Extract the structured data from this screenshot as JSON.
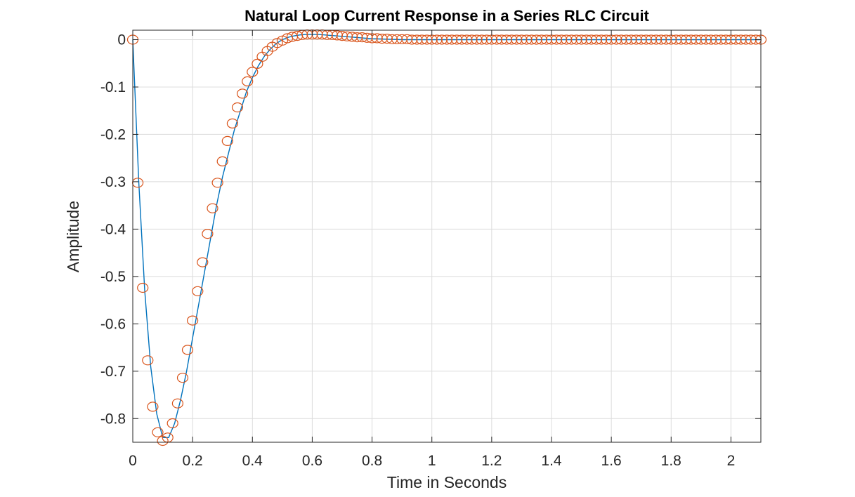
{
  "chart_data": {
    "type": "line",
    "title": "Natural Loop Current Response in a Series RLC Circuit",
    "xlabel": "Time in Seconds",
    "ylabel": "Amplitude",
    "xlim": [
      0,
      2.1
    ],
    "ylim": [
      -0.85,
      0.02
    ],
    "x_ticks": [
      0,
      0.2,
      0.4,
      0.6,
      0.8,
      1,
      1.2,
      1.4,
      1.6,
      1.8,
      2
    ],
    "x_tick_labels": [
      "0",
      "0.2",
      "0.4",
      "0.6",
      "0.8",
      "1",
      "1.2",
      "1.4",
      "1.6",
      "1.8",
      "2"
    ],
    "y_ticks": [
      0,
      -0.1,
      -0.2,
      -0.3,
      -0.4,
      -0.5,
      -0.6,
      -0.7,
      -0.8
    ],
    "y_tick_labels": [
      "0",
      "-0.1",
      "-0.2",
      "-0.3",
      "-0.4",
      "-0.5",
      "-0.6",
      "-0.7",
      "-0.8"
    ],
    "grid": true,
    "series": [
      {
        "style": "line",
        "color": "#0072BD",
        "x": [
          0,
          0.02,
          0.04,
          0.06,
          0.08,
          0.1,
          0.12,
          0.14,
          0.16,
          0.18,
          0.2,
          0.22,
          0.24,
          0.26,
          0.28,
          0.3,
          0.32,
          0.34,
          0.36,
          0.38,
          0.4,
          0.42,
          0.44,
          0.46,
          0.48,
          0.5,
          0.52,
          0.54,
          0.56,
          0.58,
          0.6,
          0.62,
          0.64,
          0.66,
          0.68,
          0.7,
          0.72,
          0.74,
          0.76,
          0.78,
          0.8,
          0.85,
          0.9,
          1.0,
          1.2,
          1.5,
          1.8,
          2.1
        ],
        "y": [
          0,
          -0.3,
          -0.53,
          -0.69,
          -0.79,
          -0.84,
          -0.84,
          -0.81,
          -0.76,
          -0.7,
          -0.63,
          -0.56,
          -0.49,
          -0.42,
          -0.35,
          -0.29,
          -0.24,
          -0.19,
          -0.15,
          -0.11,
          -0.08,
          -0.055,
          -0.035,
          -0.02,
          -0.008,
          0.0,
          0.005,
          0.008,
          0.01,
          0.011,
          0.011,
          0.011,
          0.01,
          0.009,
          0.008,
          0.007,
          0.006,
          0.005,
          0.004,
          0.003,
          0.002,
          0.001,
          0.0,
          0.0,
          0.0,
          0.0,
          0.0,
          0.0
        ]
      },
      {
        "style": "markers",
        "marker": "circle",
        "color": "#D95319",
        "x": [
          0,
          0.0167,
          0.0333,
          0.05,
          0.0667,
          0.0833,
          0.1,
          0.1167,
          0.1333,
          0.15,
          0.1667,
          0.1833,
          0.2,
          0.2167,
          0.2333,
          0.25,
          0.2667,
          0.2833,
          0.3,
          0.3167,
          0.3333,
          0.35,
          0.3667,
          0.3833,
          0.4,
          0.4167,
          0.4333,
          0.45,
          0.4667,
          0.4833,
          0.5,
          0.5167,
          0.5333,
          0.55,
          0.5667,
          0.5833,
          0.6,
          0.6167,
          0.6333,
          0.65,
          0.6667,
          0.6833,
          0.7,
          0.7167,
          0.7333,
          0.75,
          0.7667,
          0.7833,
          0.8,
          0.8167,
          0.8333,
          0.85,
          0.8667,
          0.8833,
          0.9,
          0.9167,
          0.9333,
          0.95,
          0.9667,
          0.9833,
          1.0,
          1.0167,
          1.0333,
          1.05,
          1.0667,
          1.0833,
          1.1,
          1.1167,
          1.1333,
          1.15,
          1.1667,
          1.1833,
          1.2,
          1.2167,
          1.2333,
          1.25,
          1.2667,
          1.2833,
          1.3,
          1.3167,
          1.3333,
          1.35,
          1.3667,
          1.3833,
          1.4,
          1.4167,
          1.4333,
          1.45,
          1.4667,
          1.4833,
          1.5,
          1.5167,
          1.5333,
          1.55,
          1.5667,
          1.5833,
          1.6,
          1.6167,
          1.6333,
          1.65,
          1.6667,
          1.6833,
          1.7,
          1.7167,
          1.7333,
          1.75,
          1.7667,
          1.7833,
          1.8,
          1.8167,
          1.8333,
          1.85,
          1.8667,
          1.8833,
          1.9,
          1.9167,
          1.9333,
          1.95,
          1.9667,
          1.9833,
          2.0,
          2.0167,
          2.0333,
          2.05,
          2.0667,
          2.0833,
          2.1
        ],
        "y": [
          0,
          -0.302,
          -0.524,
          -0.677,
          -0.775,
          -0.829,
          -0.847,
          -0.84,
          -0.81,
          -0.768,
          -0.714,
          -0.655,
          -0.593,
          -0.531,
          -0.47,
          -0.41,
          -0.356,
          -0.302,
          -0.257,
          -0.214,
          -0.177,
          -0.143,
          -0.114,
          -0.088,
          -0.068,
          -0.051,
          -0.036,
          -0.024,
          -0.015,
          -0.007,
          -0.002,
          0.003,
          0.006,
          0.008,
          0.01,
          0.011,
          0.011,
          0.011,
          0.011,
          0.01,
          0.01,
          0.009,
          0.008,
          0.007,
          0.006,
          0.005,
          0.005,
          0.004,
          0.003,
          0.003,
          0.002,
          0.002,
          0.001,
          0.001,
          0.001,
          0.001,
          0.0,
          0.0,
          0.0,
          0.0,
          0.0,
          0.0,
          0.0,
          0.0,
          0.0,
          0.0,
          0.0,
          0.0,
          0.0,
          0.0,
          0.0,
          0.0,
          0.0,
          0.0,
          0.0,
          0.0,
          0.0,
          0.0,
          0.0,
          0.0,
          0.0,
          0.0,
          0.0,
          0.0,
          0.0,
          0.0,
          0.0,
          0.0,
          0.0,
          0.0,
          0.0,
          0.0,
          0.0,
          0.0,
          0.0,
          0.0,
          0.0,
          0.0,
          0.0,
          0.0,
          0.0,
          0.0,
          0.0,
          0.0,
          0.0,
          0.0,
          0.0,
          0.0,
          0.0,
          0.0,
          0.0,
          0.0,
          0.0,
          0.0,
          0.0,
          0.0,
          0.0,
          0.0,
          0.0,
          0.0,
          0.0,
          0.0,
          0.0,
          0.0,
          0.0,
          0.0,
          0.0
        ]
      }
    ]
  }
}
